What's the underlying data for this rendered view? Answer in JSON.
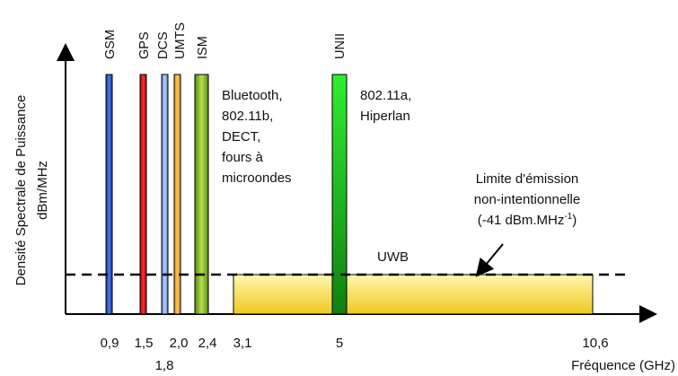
{
  "y_axis_label_line1": "Densité Spectrale de Puissance",
  "y_axis_label_line2": "dBm/MHz",
  "x_axis_label": "Fréquence (GHz)",
  "band_labels": {
    "gsm": "GSM",
    "gps": "GPS",
    "dcs": "DCS",
    "umts": "UMTS",
    "ism": "ISM",
    "unii": "UNII"
  },
  "ism_annotation": [
    "Bluetooth,",
    "802.11b,",
    "DECT,",
    "fours à",
    "microondes"
  ],
  "unii_annotation": [
    "802.11a,",
    "Hiperlan"
  ],
  "limit_annotation": {
    "line1": "Limite d'émission",
    "line2": "non-intentionnelle",
    "line3_prefix": "(-41 dBm.MHz",
    "line3_sup": "-1",
    "line3_suffix": ")"
  },
  "uwb_label": "UWB",
  "x_ticks": {
    "t09": "0,9",
    "t15": "1,5",
    "t20": "2,0",
    "t24": "2,4",
    "t31": "3,1",
    "t5": "5",
    "t106": "10,6",
    "t18": "1,8"
  },
  "colors": {
    "gsm": "#2a55c8",
    "gps": "#e02020",
    "dcs": "#7aa2e8",
    "umts": "#f4a020",
    "ism": "#8cb82a",
    "unii": "#22cc22",
    "uwb": "#f5d94a"
  }
}
